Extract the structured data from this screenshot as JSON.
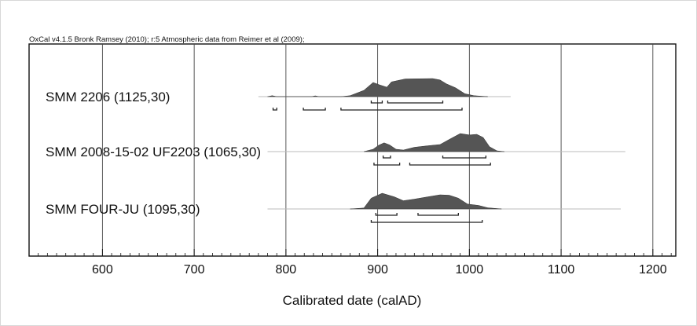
{
  "header": "OxCal v4.1.5 Bronk Ramsey (2010); r:5 Atmospheric data from Reimer et al (2009);",
  "chart_data": {
    "type": "area",
    "title": "",
    "xlabel": "Calibrated date (calAD)",
    "ylabel": "",
    "xlim": [
      520,
      1225
    ],
    "xticks": [
      600,
      700,
      800,
      900,
      1000,
      1100,
      1200
    ],
    "grid": true,
    "colors": {
      "distribution": "#555555",
      "line": "#bbbbbb",
      "range": "#222222",
      "grid": "#444444"
    },
    "series": [
      {
        "name": "SMM 2206 (1125,30)",
        "line_extent": [
          770,
          1045
        ],
        "density": [
          [
            780,
            0
          ],
          [
            785,
            0.05
          ],
          [
            790,
            0
          ],
          [
            828,
            0
          ],
          [
            832,
            0.04
          ],
          [
            836,
            0
          ],
          [
            860,
            0
          ],
          [
            870,
            0.05
          ],
          [
            885,
            0.32
          ],
          [
            895,
            0.72
          ],
          [
            902,
            0.6
          ],
          [
            910,
            0.48
          ],
          [
            915,
            0.75
          ],
          [
            930,
            0.9
          ],
          [
            960,
            0.92
          ],
          [
            968,
            0.85
          ],
          [
            975,
            0.65
          ],
          [
            985,
            0.45
          ],
          [
            995,
            0.15
          ],
          [
            1005,
            0.05
          ],
          [
            1020,
            0
          ]
        ],
        "ranges_68": [
          [
            893,
            905
          ],
          [
            911,
            971
          ]
        ],
        "ranges_95": [
          [
            786,
            790
          ],
          [
            819,
            843
          ],
          [
            860,
            992
          ]
        ]
      },
      {
        "name": "SMM 2008-15-02 UF2203 (1065,30)",
        "line_extent": [
          780,
          1170
        ],
        "density": [
          [
            885,
            0
          ],
          [
            895,
            0.12
          ],
          [
            901,
            0.32
          ],
          [
            907,
            0.45
          ],
          [
            913,
            0.34
          ],
          [
            920,
            0.12
          ],
          [
            928,
            0.08
          ],
          [
            940,
            0.22
          ],
          [
            955,
            0.3
          ],
          [
            968,
            0.36
          ],
          [
            978,
            0.62
          ],
          [
            990,
            0.92
          ],
          [
            1000,
            0.85
          ],
          [
            1008,
            0.88
          ],
          [
            1015,
            0.72
          ],
          [
            1022,
            0.25
          ],
          [
            1030,
            0.04
          ],
          [
            1038,
            0
          ]
        ],
        "ranges_68": [
          [
            906,
            914
          ],
          [
            971,
            1018
          ]
        ],
        "ranges_95": [
          [
            896,
            924
          ],
          [
            935,
            1023
          ]
        ]
      },
      {
        "name": "SMM FOUR-JU (1095,30)",
        "line_extent": [
          780,
          1165
        ],
        "density": [
          [
            870,
            0
          ],
          [
            885,
            0.05
          ],
          [
            893,
            0.55
          ],
          [
            905,
            0.8
          ],
          [
            918,
            0.62
          ],
          [
            928,
            0.42
          ],
          [
            940,
            0.5
          ],
          [
            955,
            0.62
          ],
          [
            968,
            0.72
          ],
          [
            978,
            0.7
          ],
          [
            988,
            0.55
          ],
          [
            998,
            0.25
          ],
          [
            1010,
            0.18
          ],
          [
            1020,
            0.06
          ],
          [
            1035,
            0
          ]
        ],
        "ranges_68": [
          [
            898,
            921
          ],
          [
            944,
            988
          ]
        ],
        "ranges_95": [
          [
            893,
            1014
          ]
        ]
      }
    ]
  }
}
